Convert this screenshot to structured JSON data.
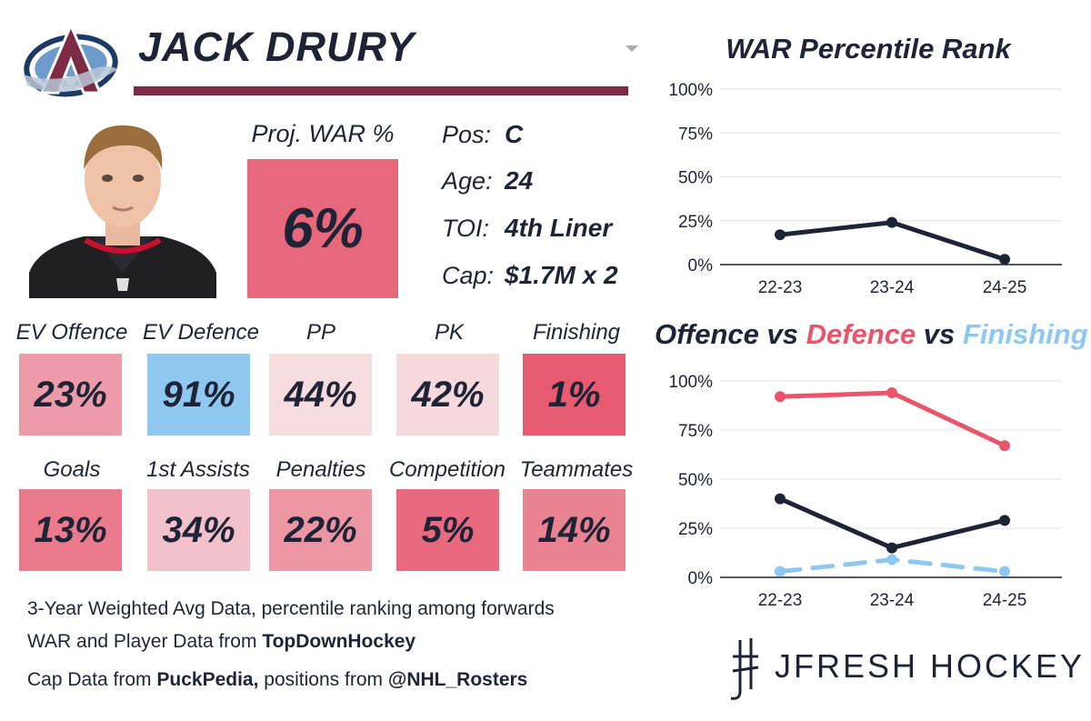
{
  "player": {
    "name": "JACK DRURY",
    "team": "Colorado Avalanche"
  },
  "colors": {
    "navy": "#1e2436",
    "team_bar": "#7d2a45",
    "offence": "#1e2436",
    "defence": "#e9566c",
    "finishing": "#8ec7f0"
  },
  "projection": {
    "label": "Proj. WAR %",
    "value": "6%"
  },
  "info": {
    "pos_label": "Pos:",
    "pos_value": "C",
    "age_label": "Age:",
    "age_value": "24",
    "toi_label": "TOI:",
    "toi_value": "4th Liner",
    "cap_label": "Cap:",
    "cap_value": "$1.7M x 2"
  },
  "stats": [
    {
      "label": "EV Offence",
      "value": "23%",
      "color": "#ed9ba8"
    },
    {
      "label": "EV Defence",
      "value": "91%",
      "color": "#8ec7f0"
    },
    {
      "label": "PP",
      "value": "44%",
      "color": "#f6dbdf"
    },
    {
      "label": "PK",
      "value": "42%",
      "color": "#f6d9dd"
    },
    {
      "label": "Finishing",
      "value": "1%",
      "color": "#e75a70"
    },
    {
      "label": "Goals",
      "value": "13%",
      "color": "#eb7a8d"
    },
    {
      "label": "1st Assists",
      "value": "34%",
      "color": "#f3c1c9"
    },
    {
      "label": "Penalties",
      "value": "22%",
      "color": "#ec95a3"
    },
    {
      "label": "Competition",
      "value": "5%",
      "color": "#e96a7e"
    },
    {
      "label": "Teammates",
      "value": "14%",
      "color": "#eb8292"
    }
  ],
  "footer": {
    "line1": "3-Year Weighted Avg Data, percentile ranking among forwards",
    "line2_prefix": "WAR and Player Data from ",
    "line2_bold": "TopDownHockey",
    "line3_prefix": "Cap Data from ",
    "line3_bold1": "PuckPedia,",
    "line3_mid": " positions from ",
    "line3_bold2": "@NHL_Rosters"
  },
  "brand": "JFRESH HOCKEY",
  "chart_titles": {
    "war": "WAR Percentile Rank",
    "ovd_offence": "Offence",
    "ovd_vs1": " vs ",
    "ovd_defence": "Defence",
    "ovd_vs2": " vs ",
    "ovd_finishing": "Finishing"
  },
  "chart_data": [
    {
      "type": "line",
      "title": "WAR Percentile Rank",
      "categories": [
        "22-23",
        "23-24",
        "24-25"
      ],
      "y_ticks": [
        "0%",
        "25%",
        "50%",
        "75%",
        "100%"
      ],
      "ylim": [
        0,
        100
      ],
      "series": [
        {
          "name": "WAR",
          "values": [
            17,
            24,
            3
          ],
          "color": "#1e2436",
          "style": "solid"
        }
      ]
    },
    {
      "type": "line",
      "title": "Offence vs Defence vs Finishing",
      "categories": [
        "22-23",
        "23-24",
        "24-25"
      ],
      "y_ticks": [
        "0%",
        "25%",
        "50%",
        "75%",
        "100%"
      ],
      "ylim": [
        0,
        100
      ],
      "series": [
        {
          "name": "Offence",
          "values": [
            40,
            15,
            29
          ],
          "color": "#1e2436",
          "style": "solid"
        },
        {
          "name": "Defence",
          "values": [
            92,
            94,
            67
          ],
          "color": "#e9566c",
          "style": "solid"
        },
        {
          "name": "Finishing",
          "values": [
            3,
            9,
            3
          ],
          "color": "#8ec7f0",
          "style": "dashed"
        }
      ]
    }
  ]
}
